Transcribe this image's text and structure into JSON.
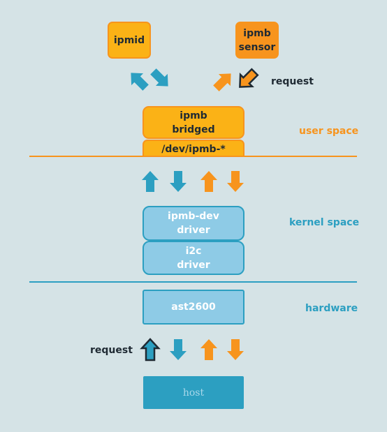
{
  "colors": {
    "background": "#d5e3e6",
    "orange": "#f7941d",
    "yellow": "#fbb216",
    "teal": "#2c9fc1",
    "light_blue": "#8ecbe6",
    "dark": "#1f2a33"
  },
  "boxes": {
    "ipmid": "ipmid",
    "ipmb_sensor": "ipmb\nsensor",
    "ipmb_bridged": "ipmb\nbridged",
    "dev_ipmb": "/dev/ipmb-*",
    "ipmb_dev_driver": "ipmb-dev\ndriver",
    "i2c_driver": "i2c\ndriver",
    "ast2600": "ast2600",
    "host": "host"
  },
  "labels": {
    "request_top": "request",
    "request_bottom": "request",
    "user_space": "user space",
    "kernel_space": "kernel space",
    "hardware": "hardware"
  }
}
